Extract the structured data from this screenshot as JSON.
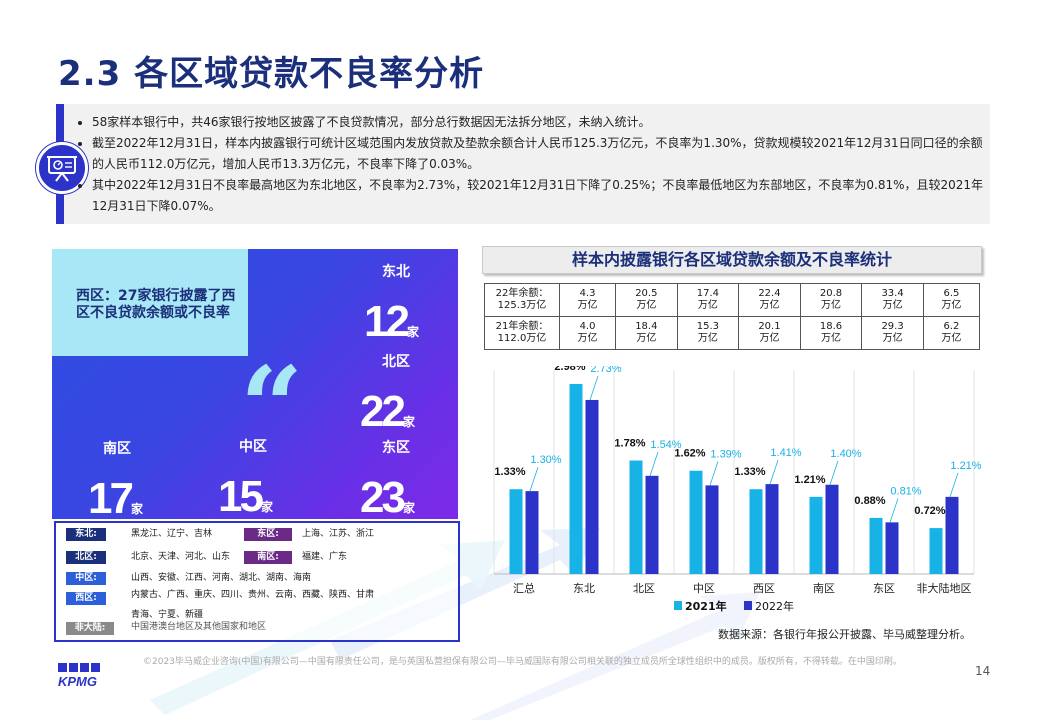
{
  "title": "2.3 各区域贷款不良率分析",
  "summary": {
    "bullets": [
      "58家样本银行中，共46家银行按地区披露了不良贷款情况，部分总行数据因无法拆分地区，未纳入统计。",
      "截至2022年12月31日，样本内披露银行可统计区域范围内发放贷款及垫款余额合计人民币125.3万亿元，不良率为1.30%，贷款规模较2021年12月31日同口径的余额的人民币112.0万亿元，增加人民币13.3万亿元，不良率下降了0.03%。",
      "其中2022年12月31日不良率最高地区为东北地区，不良率为2.73%，较2021年12月31日下降了0.25%；不良率最低地区为东部地区，不良率为0.81%，且较2021年12月31日下降0.07%。"
    ]
  },
  "left_panel": {
    "west_text": "西区：27家银行披露了西区不良贷款余额或不良率",
    "regions": [
      {
        "name": "东北",
        "count": "12",
        "unit": "家"
      },
      {
        "name": "北区",
        "count": "22",
        "unit": "家"
      },
      {
        "name": "南区",
        "count": "17",
        "unit": "家"
      },
      {
        "name": "中区",
        "count": "15",
        "unit": "家"
      },
      {
        "name": "东区",
        "count": "23",
        "unit": "家"
      }
    ],
    "legend": {
      "northeast": {
        "tag": "东北:",
        "text": "黑龙江、辽宁、吉林"
      },
      "east": {
        "tag": "东区:",
        "text": "上海、江苏、浙江"
      },
      "north": {
        "tag": "北区:",
        "text": "北京、天津、河北、山东"
      },
      "south": {
        "tag": "南区:",
        "text": "福建、广东"
      },
      "central": {
        "tag": "中区:",
        "text": "山西、安徽、江西、河南、湖北、湖南、海南"
      },
      "west": {
        "tag": "西区:",
        "text1": "内蒙古、广西、重庆、四川、贵州、云南、西藏、陕西、甘肃",
        "text2": "青海、宁夏、新疆"
      },
      "nonmainland": {
        "tag": "非大陆:",
        "text": "中国港澳台地区及其他国家和地区"
      }
    }
  },
  "right_title": "样本内披露银行各区域贷款余额及不良率统计",
  "table": {
    "rows": [
      {
        "label1": "22年余额：",
        "label2": "125.3万亿",
        "cells": [
          [
            "4.3",
            "万亿"
          ],
          [
            "20.5",
            "万亿"
          ],
          [
            "17.4",
            "万亿"
          ],
          [
            "22.4",
            "万亿"
          ],
          [
            "20.8",
            "万亿"
          ],
          [
            "33.4",
            "万亿"
          ],
          [
            "6.5",
            "万亿"
          ]
        ]
      },
      {
        "label1": "21年余额：",
        "label2": "112.0万亿",
        "cells": [
          [
            "4.0",
            "万亿"
          ],
          [
            "18.4",
            "万亿"
          ],
          [
            "15.3",
            "万亿"
          ],
          [
            "20.1",
            "万亿"
          ],
          [
            "18.6",
            "万亿"
          ],
          [
            "29.3",
            "万亿"
          ],
          [
            "6.2",
            "万亿"
          ]
        ]
      }
    ]
  },
  "chart_data": {
    "type": "bar",
    "categories": [
      "汇总",
      "东北",
      "北区",
      "中区",
      "西区",
      "南区",
      "东区",
      "非大陆地区"
    ],
    "series": [
      {
        "name": "2021年",
        "color": "#17b3e6",
        "values": [
          1.33,
          2.98,
          1.78,
          1.62,
          1.33,
          1.21,
          0.88,
          0.72
        ],
        "labels": [
          "1.33%",
          "2.98%",
          "1.78%",
          "1.62%",
          "1.33%",
          "1.21%",
          "0.88%",
          "0.72%"
        ]
      },
      {
        "name": "2022年",
        "color": "#2c33c8",
        "values": [
          1.3,
          2.73,
          1.54,
          1.39,
          1.41,
          1.4,
          0.81,
          1.21
        ],
        "labels": [
          "1.30%",
          "2.73%",
          "1.54%",
          "1.39%",
          "1.41%",
          "1.40%",
          "0.81%",
          "1.21%"
        ]
      }
    ],
    "ylim": [
      0,
      3.2
    ],
    "grid": true,
    "legend": "bottom"
  },
  "source": "数据来源：各银行年报公开披露、毕马威整理分析。",
  "footer": "©2023毕马威企业咨询(中国)有限公司—中国有限责任公司，是与英国私营担保有限公司—毕马威国际有限公司相关联的独立成员所全球性组织中的成员。版权所有，不得转载。在中国印刷。",
  "page_number": "14",
  "logo_text": "KPMG"
}
